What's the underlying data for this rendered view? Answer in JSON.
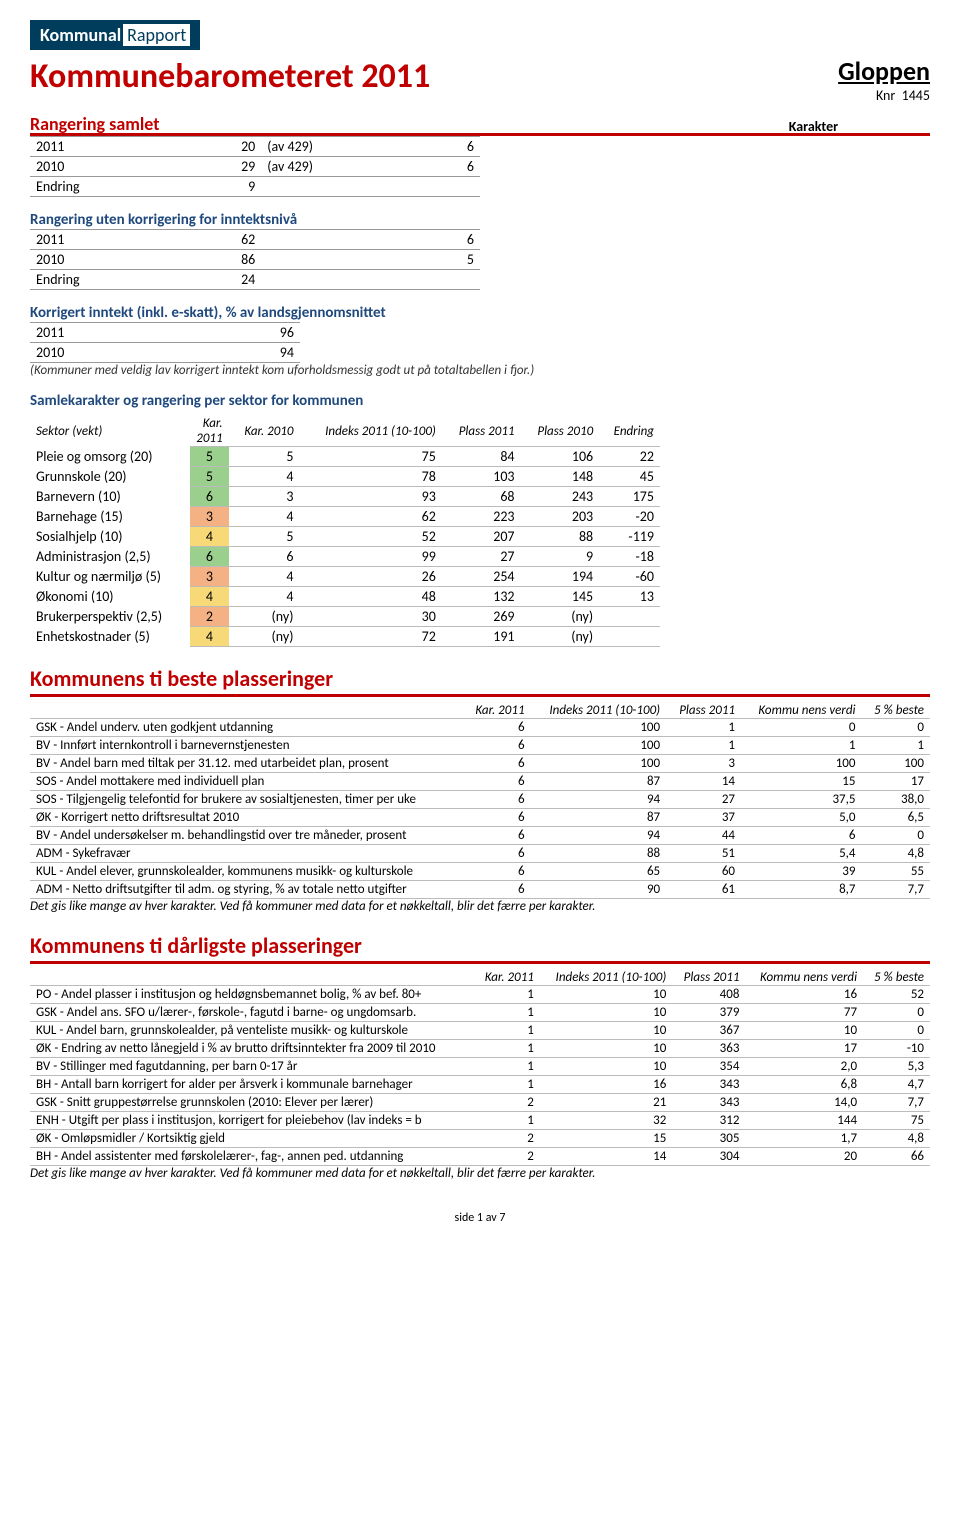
{
  "logo": {
    "brand_bold": "Kommunal",
    "brand_light": "Rapport"
  },
  "page_title": "Kommunebarometeret 2011",
  "municipality": "Gloppen",
  "knr_label": "Knr",
  "knr_value": "1445",
  "rangering_samlet": {
    "title": "Rangering samlet",
    "karakter_label": "Karakter",
    "rows": [
      {
        "y": "2011",
        "v": "20",
        "av": "(av 429)",
        "k": "6"
      },
      {
        "y": "2010",
        "v": "29",
        "av": "(av 429)",
        "k": "6"
      },
      {
        "y": "Endring",
        "v": "9",
        "av": "",
        "k": ""
      }
    ]
  },
  "rangering_uten": {
    "title": "Rangering uten korrigering for inntektsnivå",
    "rows": [
      {
        "y": "2011",
        "v": "62",
        "k": "6"
      },
      {
        "y": "2010",
        "v": "86",
        "k": "5"
      },
      {
        "y": "Endring",
        "v": "24",
        "k": ""
      }
    ]
  },
  "korrigert": {
    "title": "Korrigert inntekt (inkl. e-skatt), % av landsgjennomsnittet",
    "rows": [
      {
        "y": "2011",
        "v": "96"
      },
      {
        "y": "2010",
        "v": "94"
      }
    ],
    "note": "(Kommuner med veldig lav korrigert inntekt kom uforholdsmessig godt ut på totaltabellen i fjor.)"
  },
  "samlekarakter": {
    "title": "Samlekarakter og rangering per sektor for kommunen",
    "head": {
      "sektor": "Sektor (vekt)",
      "k11": "Kar. 2011",
      "k10": "Kar. 2010",
      "idx": "Indeks 2011 (10-100)",
      "p11": "Plass 2011",
      "p10": "Plass 2010",
      "end": "Endring"
    },
    "rows": [
      {
        "s": "Pleie og omsorg (20)",
        "k11": "5",
        "c11": "g",
        "k10": "5",
        "idx": "75",
        "p11": "84",
        "p10": "106",
        "end": "22"
      },
      {
        "s": "Grunnskole (20)",
        "k11": "5",
        "c11": "g",
        "k10": "4",
        "idx": "78",
        "p11": "103",
        "p10": "148",
        "end": "45"
      },
      {
        "s": "Barnevern (10)",
        "k11": "6",
        "c11": "g",
        "k10": "3",
        "idx": "93",
        "p11": "68",
        "p10": "243",
        "end": "175"
      },
      {
        "s": "Barnehage (15)",
        "k11": "3",
        "c11": "o",
        "k10": "4",
        "idx": "62",
        "p11": "223",
        "p10": "203",
        "end": "-20"
      },
      {
        "s": "Sosialhjelp (10)",
        "k11": "4",
        "c11": "y",
        "k10": "5",
        "idx": "52",
        "p11": "207",
        "p10": "88",
        "end": "-119"
      },
      {
        "s": "Administrasjon (2,5)",
        "k11": "6",
        "c11": "g",
        "k10": "6",
        "idx": "99",
        "p11": "27",
        "p10": "9",
        "end": "-18"
      },
      {
        "s": "Kultur og nærmiljø (5)",
        "k11": "3",
        "c11": "o",
        "k10": "4",
        "idx": "26",
        "p11": "254",
        "p10": "194",
        "end": "-60"
      },
      {
        "s": "Økonomi (10)",
        "k11": "4",
        "c11": "y",
        "k10": "4",
        "idx": "48",
        "p11": "132",
        "p10": "145",
        "end": "13"
      },
      {
        "s": "Brukerperspektiv (2,5)",
        "k11": "2",
        "c11": "o",
        "k10": "(ny)",
        "idx": "30",
        "p11": "269",
        "p10": "(ny)",
        "end": ""
      },
      {
        "s": "Enhetskostnader (5)",
        "k11": "4",
        "c11": "y",
        "k10": "(ny)",
        "idx": "72",
        "p11": "191",
        "p10": "(ny)",
        "end": ""
      }
    ]
  },
  "beste": {
    "title": "Kommunens ti beste plasseringer",
    "head": {
      "k": "Kar. 2011",
      "idx": "Indeks 2011 (10-100)",
      "p": "Plass 2011",
      "kv": "Kommu nens verdi",
      "b": "5 % beste"
    },
    "rows": [
      {
        "t": "GSK - Andel underv. uten godkjent utdanning",
        "k": "6",
        "i": "100",
        "p": "1",
        "v": "0",
        "b": "0"
      },
      {
        "t": "BV - Innført internkontroll i barnevernstjenesten",
        "k": "6",
        "i": "100",
        "p": "1",
        "v": "1",
        "b": "1"
      },
      {
        "t": "BV - Andel barn med tiltak per 31.12. med utarbeidet plan, prosent",
        "k": "6",
        "i": "100",
        "p": "3",
        "v": "100",
        "b": "100"
      },
      {
        "t": "SOS - Andel mottakere med individuell plan",
        "k": "6",
        "i": "87",
        "p": "14",
        "v": "15",
        "b": "17"
      },
      {
        "t": "SOS - Tilgjengelig telefontid for brukere av sosialtjenesten, timer per uke",
        "k": "6",
        "i": "94",
        "p": "27",
        "v": "37,5",
        "b": "38,0"
      },
      {
        "t": "ØK - Korrigert netto driftsresultat 2010",
        "k": "6",
        "i": "87",
        "p": "37",
        "v": "5,0",
        "b": "6,5"
      },
      {
        "t": "BV - Andel undersøkelser m. behandlingstid over tre måneder, prosent",
        "k": "6",
        "i": "94",
        "p": "44",
        "v": "6",
        "b": "0"
      },
      {
        "t": "ADM - Sykefravær",
        "k": "6",
        "i": "88",
        "p": "51",
        "v": "5,4",
        "b": "4,8"
      },
      {
        "t": "KUL - Andel elever, grunnskolealder, kommunens musikk- og kulturskole",
        "k": "6",
        "i": "65",
        "p": "60",
        "v": "39",
        "b": "55"
      },
      {
        "t": "ADM - Netto driftsutgifter til adm. og styring, % av totale netto utgifter",
        "k": "6",
        "i": "90",
        "p": "61",
        "v": "8,7",
        "b": "7,7"
      }
    ],
    "note": "Det gis like mange av hver karakter. Ved få kommuner med data for et nøkkeltall, blir det færre per karakter."
  },
  "darligste": {
    "title": "Kommunens ti dårligste plasseringer",
    "head": {
      "k": "Kar. 2011",
      "idx": "Indeks 2011 (10-100)",
      "p": "Plass 2011",
      "kv": "Kommu nens verdi",
      "b": "5 % beste"
    },
    "rows": [
      {
        "t": "PO - Andel plasser i institusjon og heldøgnsbemannet bolig, % av bef. 80+",
        "k": "1",
        "i": "10",
        "p": "408",
        "v": "16",
        "b": "52"
      },
      {
        "t": "GSK - Andel ans. SFO u/lærer-, førskole-, fagutd i barne- og ungdomsarb.",
        "k": "1",
        "i": "10",
        "p": "379",
        "v": "77",
        "b": "0"
      },
      {
        "t": "KUL - Andel barn, grunnskolealder, på venteliste musikk- og kulturskole",
        "k": "1",
        "i": "10",
        "p": "367",
        "v": "10",
        "b": "0"
      },
      {
        "t": "ØK - Endring av netto lånegjeld i % av brutto driftsinntekter fra 2009 til 2010",
        "k": "1",
        "i": "10",
        "p": "363",
        "v": "17",
        "b": "-10"
      },
      {
        "t": "BV - Stillinger med fagutdanning, per barn 0-17 år",
        "k": "1",
        "i": "10",
        "p": "354",
        "v": "2,0",
        "b": "5,3"
      },
      {
        "t": "BH - Antall barn korrigert for alder per årsverk i kommunale barnehager",
        "k": "1",
        "i": "16",
        "p": "343",
        "v": "6,8",
        "b": "4,7"
      },
      {
        "t": "GSK - Snitt gruppestørrelse grunnskolen (2010: Elever per lærer)",
        "k": "2",
        "i": "21",
        "p": "343",
        "v": "14,0",
        "b": "7,7"
      },
      {
        "t": "ENH - Utgift per plass i institusjon, korrigert for pleiebehov (lav indeks = b",
        "k": "1",
        "i": "32",
        "p": "312",
        "v": "144",
        "b": "75"
      },
      {
        "t": "ØK - Omløpsmidler / Kortsiktig gjeld",
        "k": "2",
        "i": "15",
        "p": "305",
        "v": "1,7",
        "b": "4,8"
      },
      {
        "t": "BH - Andel assistenter med førskolelærer-, fag-, annen ped. utdanning",
        "k": "2",
        "i": "14",
        "p": "304",
        "v": "20",
        "b": "66"
      }
    ],
    "note": "Det gis like mange av hver karakter. Ved få kommuner med data for et nøkkeltall, blir det færre per karakter."
  },
  "footer": "side 1 av 7",
  "colors": {
    "accent": "#c00000",
    "header_blue": "#1f497d",
    "cell_green": "#9bcf8e",
    "cell_yellow": "#f7d978",
    "cell_orange": "#f4b183"
  }
}
